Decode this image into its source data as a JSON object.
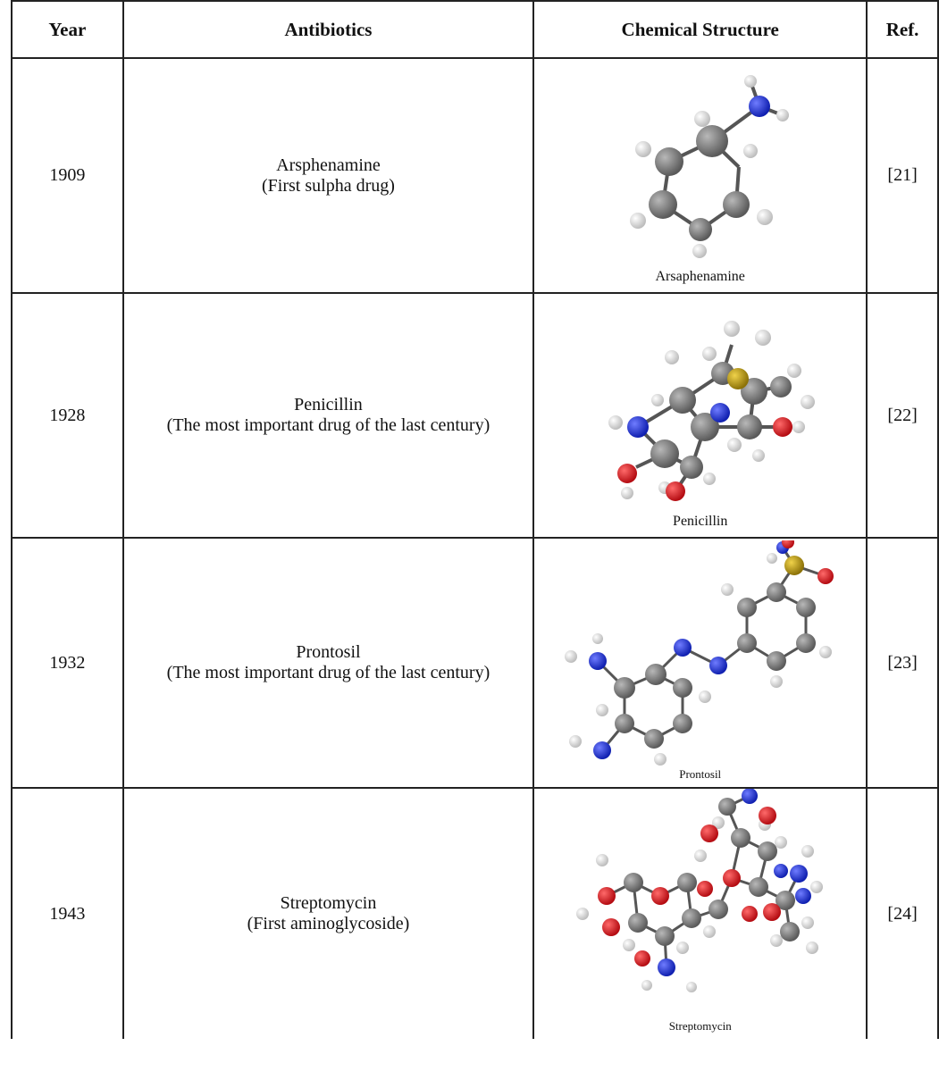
{
  "table": {
    "headers": {
      "year": "Year",
      "antibiotics": "Antibiotics",
      "structure": "Chemical Structure",
      "ref": "Ref."
    },
    "rows": [
      {
        "year": "1909",
        "name": "Arsphenamine",
        "note": "(First sulpha drug)",
        "structure_caption": "Arsaphenamine",
        "ref": "[21]"
      },
      {
        "year": "1928",
        "name": "Penicillin",
        "note": "(The most important drug of the last century)",
        "structure_caption": "Penicillin",
        "ref": "[22]"
      },
      {
        "year": "1932",
        "name": "Prontosil",
        "note": "(The most important drug of the last century)",
        "structure_caption": "Prontosil",
        "ref": "[23]"
      },
      {
        "year": "1943",
        "name": "Streptomycin",
        "note": "(First aminoglycoside)",
        "structure_caption": "Streptomycin",
        "ref": "[24]"
      }
    ]
  },
  "atom_colors": {
    "carbon": "#6e6e6e",
    "hydrogen": "#e6e6e6",
    "nitrogen": "#1c2fd6",
    "oxygen": "#d4141c",
    "sulfur": "#b59a10"
  }
}
